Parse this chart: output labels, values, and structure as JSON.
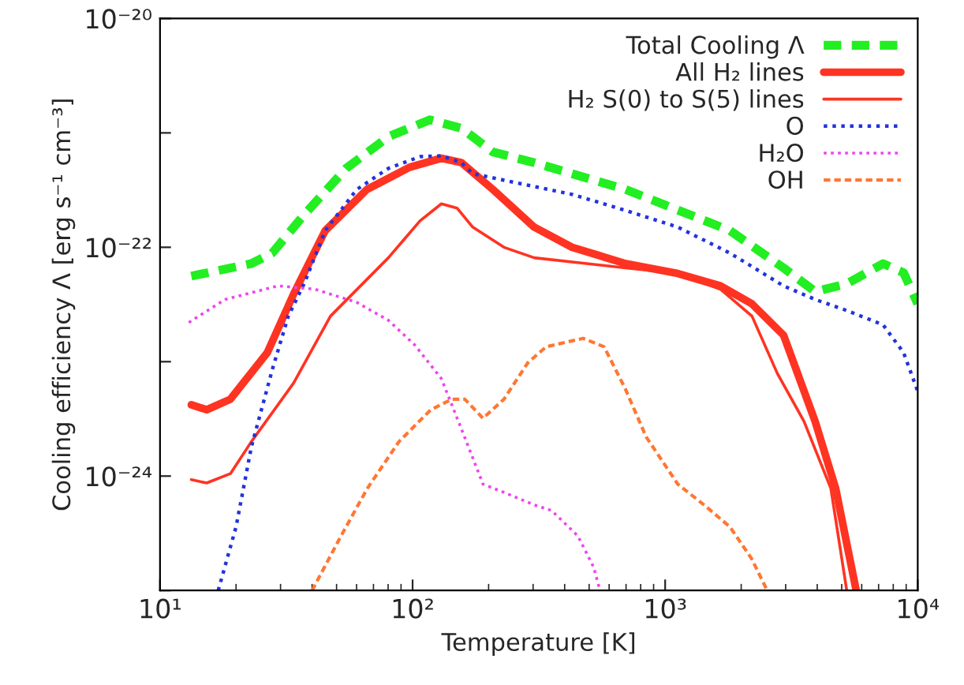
{
  "chart_data": {
    "type": "line",
    "xlabel": "Temperature [K]",
    "ylabel": "Cooling efficiency Λ [erg s⁻¹ cm⁻³]",
    "log": "xy",
    "grid": false,
    "legend": "top right",
    "xlim": [
      10,
      10000
    ],
    "xticks": [
      {
        "value": 10,
        "label": "10¹"
      },
      {
        "value": 100,
        "label": "10²"
      },
      {
        "value": 1000,
        "label": "10³"
      },
      {
        "value": 10000,
        "label": "10⁴"
      }
    ],
    "ylim": [
      1e-25,
      1e-20
    ],
    "yticks": [
      {
        "value": 1e-25,
        "label": null
      },
      {
        "value": 1e-24,
        "label": "10⁻²⁴"
      },
      {
        "value": 1e-23,
        "label": null
      },
      {
        "value": 1e-22,
        "label": "10⁻²²"
      },
      {
        "value": 1e-21,
        "label": null
      },
      {
        "value": 1e-20,
        "label": "10⁻²⁰"
      }
    ],
    "series": [
      {
        "name": "Total Cooling Λ",
        "color": "#22ee22",
        "line_style": "dashed",
        "x": [
          13.3,
          23.0,
          27.8,
          37.0,
          54.6,
          80.5,
          117,
          156,
          208,
          303,
          698,
          1804,
          2944,
          3924,
          5236,
          7290,
          8790,
          10000
        ],
        "values": [
          5.6e-23,
          7.2e-23,
          8.9e-23,
          1.9e-22,
          4.9e-22,
          9.3e-22,
          1.3e-21,
          1.1e-21,
          6.8e-22,
          5.5e-22,
          3.2e-22,
          1.4e-22,
          6.6e-23,
          4.1e-23,
          4.8e-23,
          7.2e-23,
          6e-23,
          3.2e-23
        ]
      },
      {
        "name": "All H₂ lines",
        "color": "#ff3322",
        "line_style": "solid",
        "x": [
          13.3,
          15.3,
          19.0,
          26.6,
          33.8,
          45.1,
          65.9,
          97.2,
          130,
          156,
          208,
          303,
          428,
          698,
          1122,
          1655,
          2207,
          2944,
          3926,
          4732,
          5706
        ],
        "values": [
          4.2e-24,
          3.8e-24,
          4.7e-24,
          1.2e-23,
          3.9e-23,
          1.4e-22,
          3.2e-22,
          5e-22,
          6e-22,
          5.5e-22,
          3.2e-22,
          1.5e-22,
          1e-22,
          7.2e-23,
          5.9e-23,
          4.6e-23,
          3.2e-23,
          1.7e-23,
          3e-24,
          7.8e-25,
          1e-25
        ]
      },
      {
        "name": "H₂ S(0) to S(5) lines",
        "color": "#ff3322",
        "line_style": "solid",
        "x": [
          13.3,
          15.3,
          19.0,
          23.0,
          33.8,
          47.3,
          80.2,
          107,
          130,
          150,
          173,
          230,
          303,
          698,
          1122,
          1655,
          2207,
          2780,
          3548,
          4529,
          5236
        ],
        "values": [
          9.3e-25,
          8.7e-25,
          1.05e-24,
          2e-24,
          6.5e-24,
          2.5e-23,
          8.1e-23,
          1.7e-22,
          2.4e-22,
          2.2e-22,
          1.5e-22,
          1e-22,
          8.1e-23,
          6.6e-23,
          5.9e-23,
          4.3e-23,
          2.5e-23,
          7.9e-24,
          3e-24,
          7.8e-25,
          1e-25
        ]
      },
      {
        "name": "O",
        "color": "#2233dd",
        "line_style": "dotted",
        "x": [
          17.0,
          20.0,
          23.0,
          27.9,
          32.2,
          37.2,
          45.1,
          60.1,
          80.2,
          107,
          130,
          156,
          173,
          303,
          428,
          698,
          1122,
          1804,
          2944,
          3924,
          5236,
          7290,
          8790,
          10000
        ],
        "values": [
          1e-25,
          3.6e-25,
          1.8e-24,
          8.7e-24,
          2.5e-23,
          4.8e-23,
          1.4e-22,
          3.2e-22,
          4.9e-22,
          6.2e-22,
          6.3e-22,
          5.5e-22,
          4.4e-22,
          3.4e-22,
          2.9e-22,
          2.1e-22,
          1.5e-22,
          8.9e-23,
          4.6e-23,
          3.5e-23,
          2.8e-23,
          2.1e-23,
          1.2e-23,
          5.5e-24
        ]
      },
      {
        "name": "H₂O",
        "color": "#ee44ee",
        "line_style": "dotted",
        "x": [
          13.0,
          18.1,
          29.3,
          41.0,
          60.1,
          80.2,
          102,
          130,
          157,
          190,
          230,
          303,
          355,
          451,
          521,
          552
        ],
        "values": [
          2.2e-23,
          3.5e-23,
          4.6e-23,
          4.3e-23,
          3.3e-23,
          2.3e-23,
          1.4e-23,
          7.1e-24,
          2.5e-24,
          8.5e-25,
          7.2e-25,
          5.6e-25,
          5e-25,
          3e-25,
          1.6e-25,
          1e-25
        ]
      },
      {
        "name": "OH",
        "color": "#ff7733",
        "line_style": "dashed",
        "x": [
          40.0,
          52.1,
          66.2,
          88.3,
          118,
          143,
          161,
          190,
          230,
          286,
          338,
          473,
          573,
          695,
          841,
          1122,
          1426,
          1804,
          2198,
          2535
        ],
        "values": [
          1e-25,
          3e-25,
          7.8e-25,
          2e-24,
          3.8e-24,
          4.7e-24,
          4.7e-24,
          3.2e-24,
          4.7e-24,
          9.8e-24,
          1.35e-23,
          1.6e-23,
          1.35e-23,
          5.8e-24,
          2.2e-24,
          8.5e-25,
          5.6e-25,
          3.6e-25,
          1.9e-25,
          1e-25
        ]
      }
    ]
  }
}
